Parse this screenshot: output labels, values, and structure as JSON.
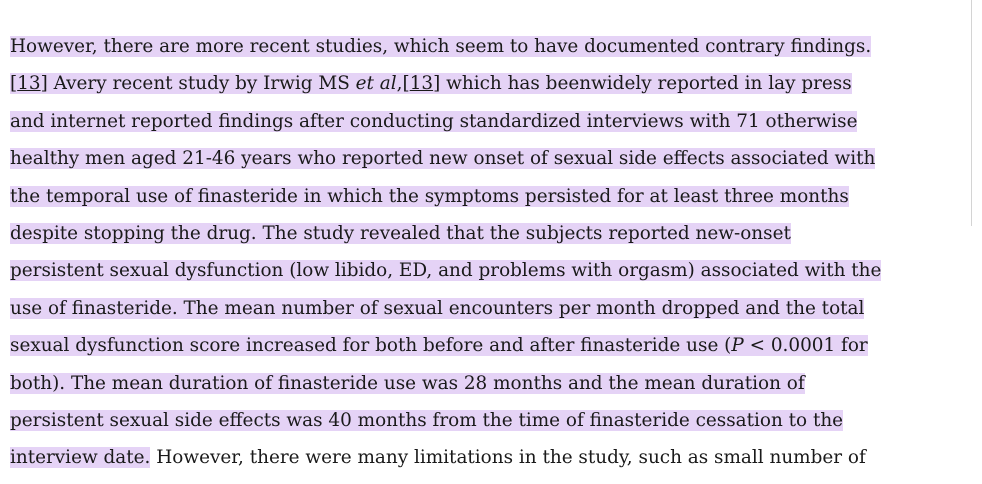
{
  "highlight_color": "#e5d3f6",
  "text_color": "#1a1a1a",
  "lines": {
    "l1": "However, there are more recent studies, which seem to have documented contrary findings.",
    "l2_ref1": "13",
    "l2_a": " Avery recent study by Irwig MS ",
    "l2_etal": "et al",
    "l2_comma": ",",
    "l2_ref2": "13",
    "l2_b": " which has beenwidely reported in lay press",
    "l3": "and internet reported findings after conducting standardized interviews with 71 otherwise",
    "l4": "healthy men aged 21-46 years who reported new onset of sexual side effects associated with",
    "l5": "the temporal use of finasteride in which the symptoms persisted for at least three months",
    "l6": "despite stopping the drug. The study revealed that the subjects reported new-onset",
    "l7": "persistent sexual dysfunction (low libido, ED, and problems with orgasm) associated with the",
    "l8": "use of finasteride. The mean number of sexual encounters per month dropped and the total",
    "l9_a": "sexual dysfunction score increased for both before and after finasteride use (",
    "l9_p": "P",
    "l9_b": " < 0.0001 for",
    "l10": "both). The mean duration of finasteride use was 28 months and the mean duration of",
    "l11": "persistent sexual side effects was 40 months from the time of finasteride cessation to the",
    "l12_hl": "interview date.",
    "l12_rest": " However, there were many limitations in the study, such as small number of"
  }
}
